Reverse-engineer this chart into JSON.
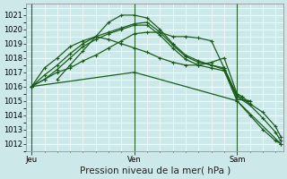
{
  "xlabel_text": "Pression niveau de la mer( hPa )",
  "background_color": "#cce8e8",
  "grid_color": "#ffffff",
  "line_color": "#1a5c1a",
  "ylim": [
    1011.5,
    1021.8
  ],
  "yticks": [
    1012,
    1013,
    1014,
    1015,
    1016,
    1017,
    1018,
    1019,
    1020,
    1021
  ],
  "xtick_labels": [
    "Jeu",
    "Ven",
    "Sam"
  ],
  "xtick_positions": [
    0,
    40,
    80
  ],
  "xminor_step": 5,
  "xlim": [
    -2,
    98
  ],
  "lines": [
    {
      "x": [
        0,
        5,
        10,
        15,
        20,
        25,
        30,
        35,
        40,
        45,
        50,
        55,
        60,
        65,
        70,
        75,
        80,
        85,
        90,
        95,
        97
      ],
      "y": [
        1016.0,
        1016.5,
        1017.2,
        1018.0,
        1018.8,
        1019.3,
        1019.7,
        1020.0,
        1020.3,
        1020.3,
        1019.6,
        1018.7,
        1017.9,
        1017.5,
        1017.3,
        1017.1,
        1015.0,
        1014.0,
        1013.0,
        1012.2,
        1012.0
      ],
      "style": "-",
      "marker": "+"
    },
    {
      "x": [
        0,
        5,
        10,
        15,
        20,
        25,
        30,
        35,
        40,
        45,
        50,
        55,
        60,
        65,
        70,
        75,
        80,
        85,
        90,
        95,
        97
      ],
      "y": [
        1016.0,
        1016.8,
        1017.5,
        1018.3,
        1019.0,
        1019.5,
        1019.8,
        1020.1,
        1020.4,
        1020.5,
        1019.8,
        1018.9,
        1018.1,
        1017.7,
        1017.5,
        1017.2,
        1015.3,
        1014.7,
        1013.8,
        1012.8,
        1012.2
      ],
      "style": "-",
      "marker": "+"
    },
    {
      "x": [
        0,
        5,
        10,
        15,
        20,
        25,
        30,
        35,
        40,
        45,
        50,
        55,
        60,
        65,
        70,
        75,
        80,
        82,
        84
      ],
      "y": [
        1016.0,
        1017.3,
        1018.0,
        1018.8,
        1019.2,
        1019.5,
        1019.3,
        1019.0,
        1018.7,
        1018.4,
        1018.0,
        1017.7,
        1017.5,
        1017.5,
        1017.7,
        1018.0,
        1015.5,
        1015.3,
        1015.0
      ],
      "style": "-",
      "marker": "+"
    },
    {
      "x": [
        10,
        15,
        20,
        25,
        30,
        35,
        40,
        45,
        50,
        55,
        60,
        65,
        70,
        75,
        80,
        85,
        90,
        95,
        97
      ],
      "y": [
        1016.5,
        1017.5,
        1018.5,
        1019.5,
        1020.5,
        1021.0,
        1021.0,
        1020.8,
        1020.0,
        1019.0,
        1018.2,
        1017.8,
        1017.5,
        1017.3,
        1015.4,
        1014.8,
        1014.2,
        1013.2,
        1012.5
      ],
      "style": "-",
      "marker": "+"
    },
    {
      "x": [
        0,
        5,
        10,
        15,
        20,
        25,
        30,
        35,
        40,
        45,
        50,
        55,
        60,
        65,
        70,
        75,
        80,
        85
      ],
      "y": [
        1016.0,
        1016.5,
        1017.0,
        1017.3,
        1017.8,
        1018.2,
        1018.7,
        1019.2,
        1019.7,
        1019.8,
        1019.8,
        1019.5,
        1019.5,
        1019.4,
        1019.2,
        1017.3,
        1015.1,
        1015.0
      ],
      "style": "-",
      "marker": "+"
    },
    {
      "x": [
        0,
        40,
        80,
        97
      ],
      "y": [
        1016.0,
        1017.0,
        1015.0,
        1012.0
      ],
      "style": "-",
      "marker": "+"
    }
  ],
  "vline_positions": [
    0,
    40,
    80
  ],
  "vline_color": "#2a6030",
  "tick_fontsize": 6,
  "xlabel_fontsize": 7.5
}
